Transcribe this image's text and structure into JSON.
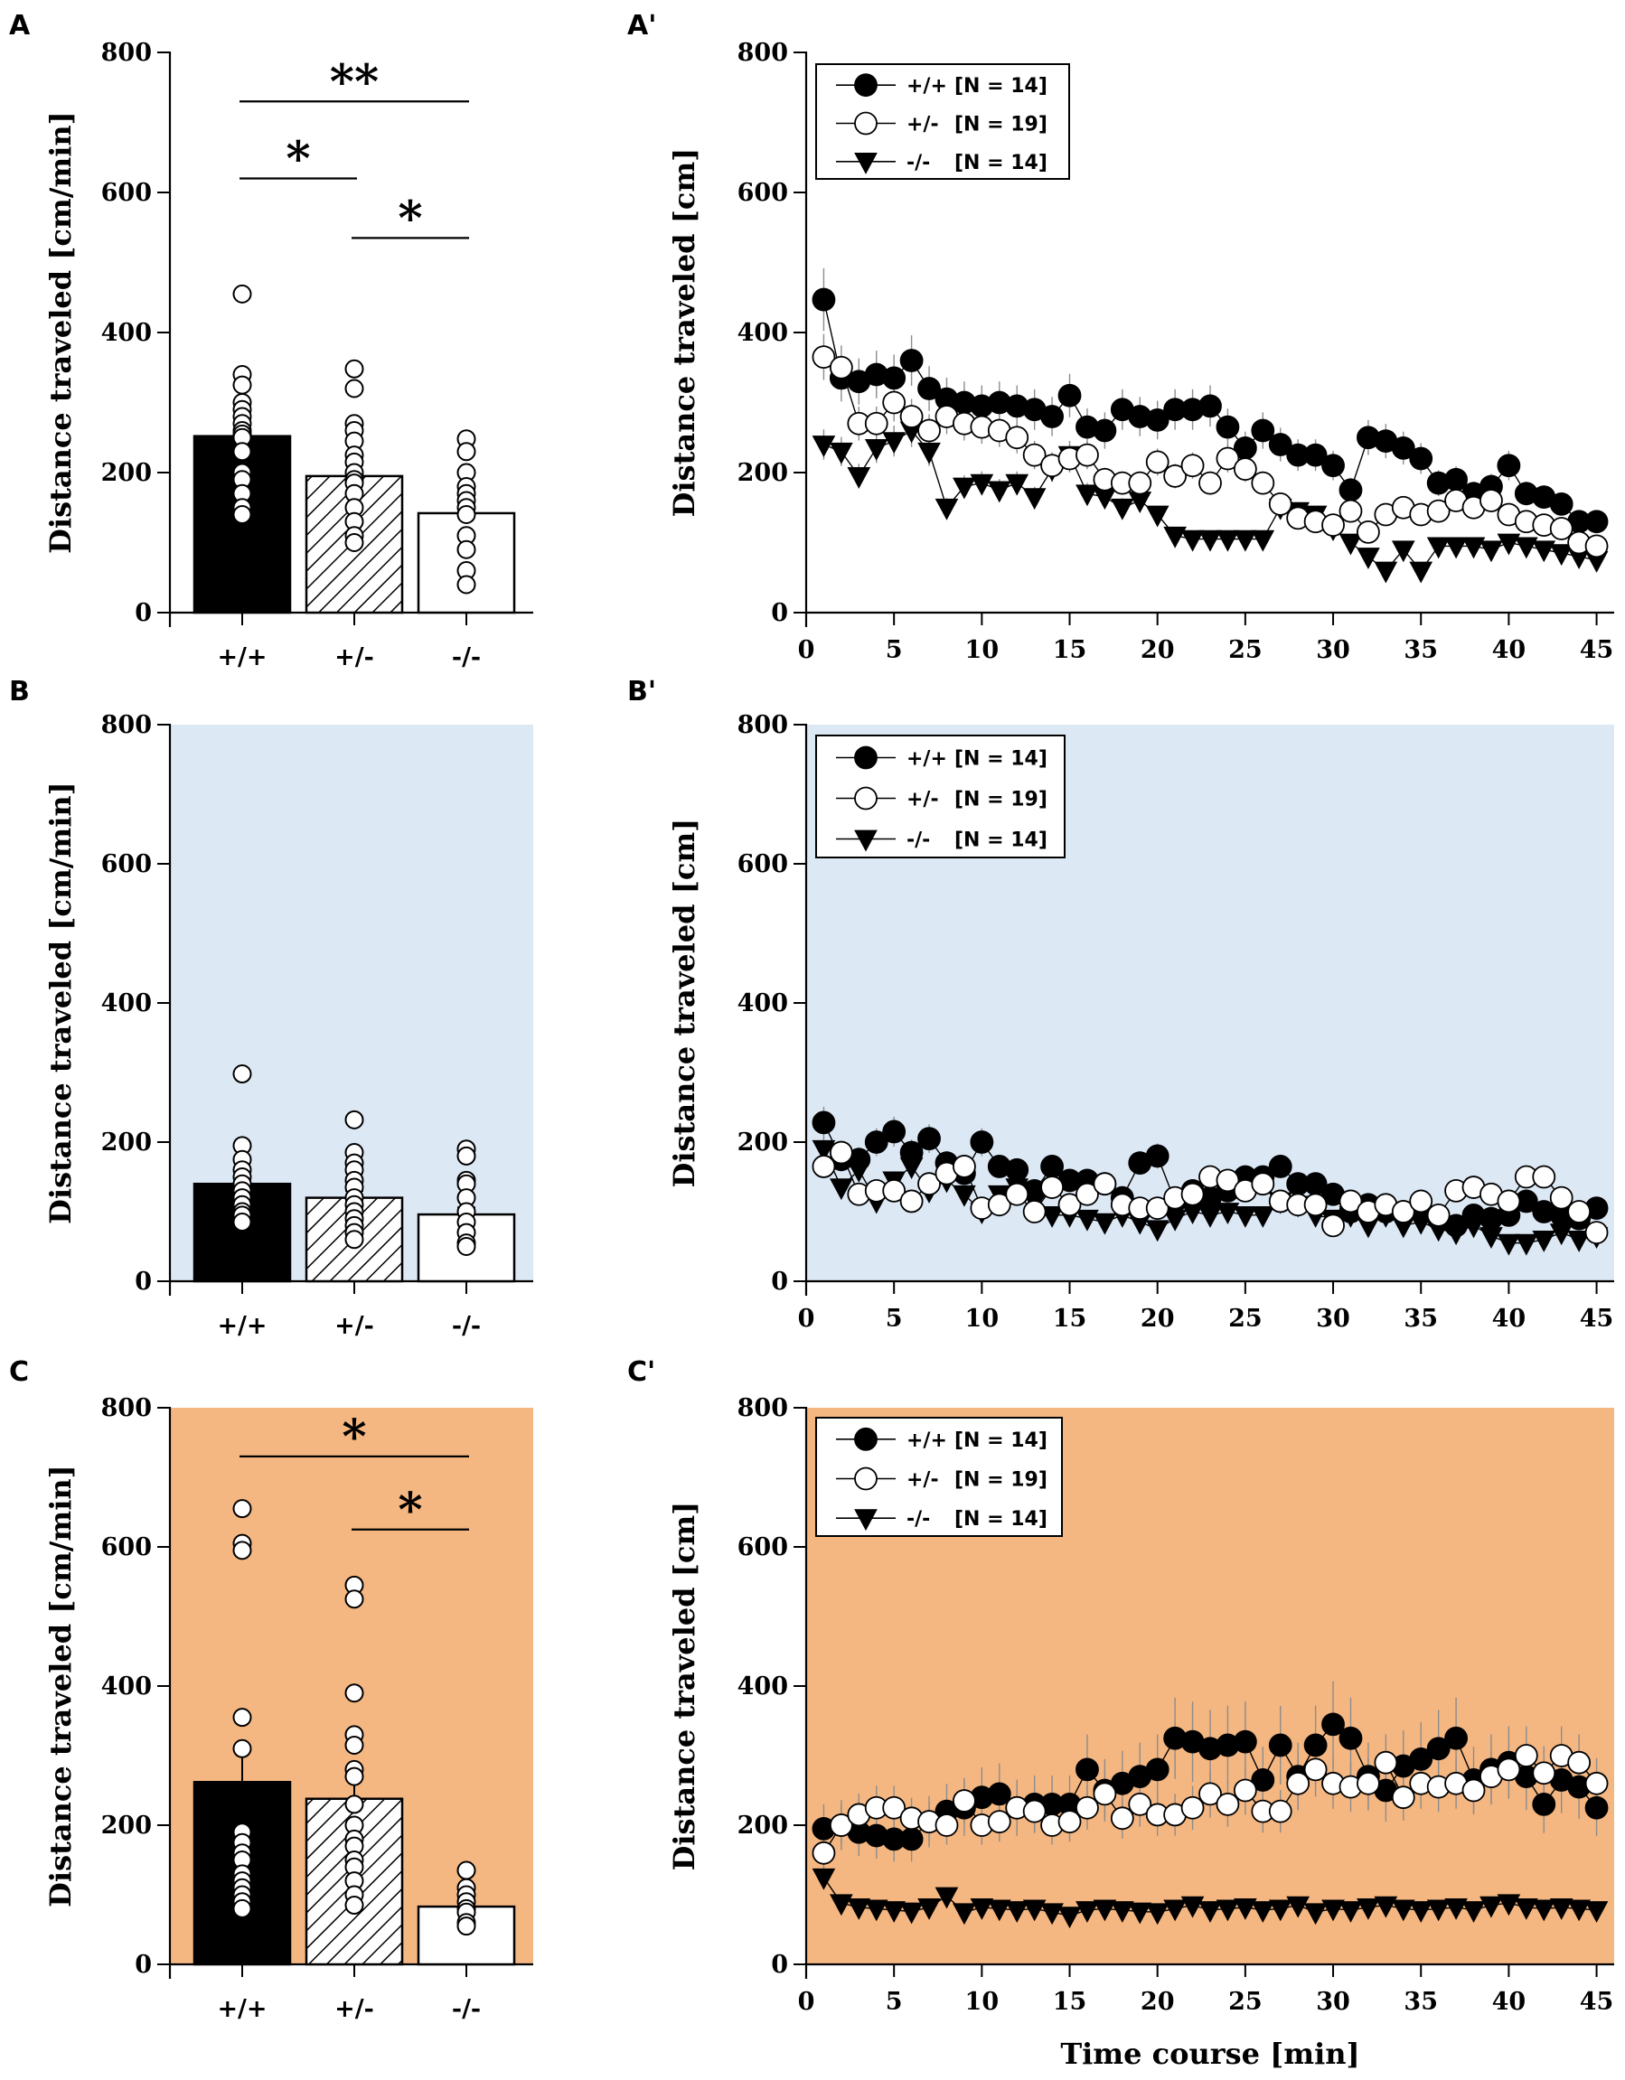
{
  "figure": {
    "y_axis_label_bar": "Distance traveled [cm/min]",
    "y_axis_label_time": "Distance traveled [cm]",
    "x_axis_label_time": "Time course [min]",
    "groups": [
      "+/+",
      "+/-",
      "-/-"
    ],
    "legend": [
      {
        "symbol": "+/+",
        "n": "[N = 14]"
      },
      {
        "symbol": "+/-",
        "n": "[N = 19]"
      },
      {
        "symbol": "-/-",
        "n": "[N = 14]"
      }
    ],
    "colors": {
      "panel_b_background": "#dde8f5",
      "panel_c_background": "#f5b782",
      "wt_fill": "#000000",
      "ko_fill": "#ffffff"
    }
  },
  "chart_data": [
    {
      "id": "A",
      "letter": "A",
      "type": "bar",
      "background": "none",
      "title": "",
      "xlabel": "",
      "ylabel": "Distance traveled [cm/min]",
      "ylim": [
        0,
        800
      ],
      "yticks": [
        0,
        200,
        400,
        600,
        800
      ],
      "categories": [
        "+/+",
        "+/-",
        "-/-"
      ],
      "values": [
        252,
        195,
        142
      ],
      "errors": [
        18,
        16,
        15
      ],
      "points": [
        [
          455,
          340,
          325,
          300,
          290,
          280,
          270,
          260,
          255,
          250,
          230,
          200,
          190,
          170,
          150,
          140
        ],
        [
          348,
          320,
          270,
          260,
          245,
          225,
          215,
          200,
          190,
          185,
          170,
          150,
          130,
          110,
          100
        ],
        [
          248,
          230,
          200,
          180,
          170,
          160,
          150,
          140,
          110,
          90,
          60,
          40
        ]
      ],
      "significance": [
        {
          "from": 0,
          "to": 2,
          "label": "**",
          "y": 730
        },
        {
          "from": 0,
          "to": 1,
          "label": "*",
          "y": 620
        },
        {
          "from": 1,
          "to": 2,
          "label": "*",
          "y": 535
        }
      ]
    },
    {
      "id": "A2",
      "letter": "A'",
      "type": "line",
      "background": "none",
      "title": "",
      "xlabel": "",
      "ylabel": "Distance traveled [cm]",
      "xlim": [
        0,
        46
      ],
      "ylim": [
        0,
        800
      ],
      "xticks": [
        0,
        5,
        10,
        15,
        20,
        25,
        30,
        35,
        40,
        45
      ],
      "yticks": [
        0,
        200,
        400,
        600,
        800
      ],
      "x": [
        1,
        2,
        3,
        4,
        5,
        6,
        7,
        8,
        9,
        10,
        11,
        12,
        13,
        14,
        15,
        16,
        17,
        18,
        19,
        20,
        21,
        22,
        23,
        24,
        25,
        26,
        27,
        28,
        29,
        30,
        31,
        32,
        33,
        34,
        35,
        36,
        37,
        38,
        39,
        40,
        41,
        42,
        43,
        44,
        45
      ],
      "series": [
        {
          "name": "+/+",
          "marker": "filled-circle",
          "values": [
            447,
            335,
            330,
            340,
            335,
            360,
            320,
            305,
            300,
            295,
            300,
            295,
            290,
            280,
            310,
            265,
            260,
            290,
            280,
            275,
            290,
            290,
            295,
            265,
            235,
            260,
            240,
            225,
            225,
            210,
            175,
            250,
            245,
            235,
            220,
            185,
            190,
            170,
            180,
            210,
            170,
            165,
            155,
            130,
            130
          ]
        },
        {
          "name": "+/-",
          "marker": "open-circle",
          "values": [
            365,
            350,
            270,
            270,
            300,
            280,
            260,
            280,
            270,
            265,
            260,
            250,
            225,
            210,
            220,
            225,
            190,
            185,
            185,
            215,
            195,
            210,
            185,
            220,
            205,
            185,
            155,
            135,
            130,
            125,
            145,
            115,
            140,
            150,
            140,
            145,
            160,
            150,
            160,
            140,
            130,
            125,
            120,
            100,
            95
          ]
        },
        {
          "name": "-/-",
          "marker": "filled-triangle",
          "values": [
            240,
            230,
            195,
            235,
            245,
            260,
            230,
            150,
            180,
            185,
            175,
            185,
            165,
            205,
            225,
            170,
            165,
            150,
            160,
            140,
            110,
            105,
            105,
            105,
            105,
            105,
            150,
            145,
            140,
            120,
            100,
            80,
            60,
            90,
            60,
            95,
            95,
            95,
            90,
            100,
            95,
            90,
            85,
            80,
            75
          ]
        }
      ]
    },
    {
      "id": "B",
      "letter": "B",
      "type": "bar",
      "background": "blue",
      "title": "",
      "xlabel": "",
      "ylabel": "Distance traveled [cm/min]",
      "ylim": [
        0,
        800
      ],
      "yticks": [
        0,
        200,
        400,
        600,
        800
      ],
      "categories": [
        "+/+",
        "+/-",
        "-/-"
      ],
      "values": [
        140,
        120,
        96
      ],
      "errors": [
        13,
        10,
        10
      ],
      "points": [
        [
          298,
          195,
          175,
          160,
          150,
          140,
          130,
          120,
          110,
          100,
          95,
          85
        ],
        [
          232,
          185,
          170,
          160,
          145,
          135,
          120,
          110,
          100,
          90,
          80,
          70,
          60
        ],
        [
          190,
          180,
          145,
          140,
          120,
          100,
          85,
          70,
          55,
          50
        ]
      ],
      "significance": []
    },
    {
      "id": "B2",
      "letter": "B'",
      "type": "line",
      "background": "blue",
      "title": "",
      "xlabel": "",
      "ylabel": "Distance traveled [cm]",
      "xlim": [
        0,
        46
      ],
      "ylim": [
        0,
        800
      ],
      "xticks": [
        0,
        5,
        10,
        15,
        20,
        25,
        30,
        35,
        40,
        45
      ],
      "yticks": [
        0,
        200,
        400,
        600,
        800
      ],
      "x": [
        1,
        2,
        3,
        4,
        5,
        6,
        7,
        8,
        9,
        10,
        11,
        12,
        13,
        14,
        15,
        16,
        17,
        18,
        19,
        20,
        21,
        22,
        23,
        24,
        25,
        26,
        27,
        28,
        29,
        30,
        31,
        32,
        33,
        34,
        35,
        36,
        37,
        38,
        39,
        40,
        41,
        42,
        43,
        44,
        45
      ],
      "series": [
        {
          "name": "+/+",
          "marker": "filled-circle",
          "values": [
            228,
            175,
            175,
            200,
            215,
            185,
            205,
            170,
            155,
            200,
            165,
            160,
            130,
            165,
            145,
            145,
            140,
            120,
            170,
            180,
            115,
            130,
            120,
            130,
            150,
            150,
            165,
            140,
            140,
            125,
            100,
            110,
            100,
            100,
            100,
            90,
            80,
            95,
            90,
            95,
            115,
            100,
            95,
            90,
            105
          ]
        },
        {
          "name": "+/-",
          "marker": "open-circle",
          "values": [
            165,
            185,
            125,
            130,
            130,
            115,
            140,
            155,
            165,
            105,
            110,
            125,
            100,
            135,
            110,
            125,
            140,
            110,
            105,
            105,
            120,
            125,
            150,
            145,
            130,
            140,
            115,
            110,
            110,
            80,
            115,
            100,
            110,
            100,
            115,
            95,
            130,
            135,
            125,
            115,
            150,
            150,
            120,
            100,
            70
          ]
        },
        {
          "name": "-/-",
          "marker": "filled-triangle",
          "values": [
            190,
            135,
            160,
            115,
            145,
            165,
            130,
            145,
            125,
            100,
            125,
            135,
            115,
            95,
            95,
            90,
            85,
            95,
            85,
            75,
            90,
            100,
            95,
            100,
            95,
            95,
            115,
            110,
            95,
            90,
            95,
            80,
            95,
            80,
            85,
            75,
            70,
            80,
            65,
            55,
            55,
            60,
            70,
            60,
            65
          ]
        }
      ]
    },
    {
      "id": "C",
      "letter": "C",
      "type": "bar",
      "background": "orange",
      "title": "",
      "xlabel": "",
      "ylabel": "Distance traveled [cm/min]",
      "ylim": [
        0,
        800
      ],
      "yticks": [
        0,
        200,
        400,
        600,
        800
      ],
      "categories": [
        "+/+",
        "+/-",
        "-/-"
      ],
      "values": [
        262,
        238,
        83
      ],
      "errors": [
        48,
        34,
        11
      ],
      "points": [
        [
          655,
          605,
          595,
          355,
          310,
          190,
          175,
          160,
          150,
          130,
          120,
          110,
          100,
          90,
          80
        ],
        [
          545,
          525,
          390,
          330,
          315,
          280,
          270,
          230,
          200,
          180,
          170,
          150,
          140,
          120,
          100,
          85
        ],
        [
          135,
          110,
          100,
          90,
          80,
          75,
          60,
          55
        ]
      ],
      "significance": [
        {
          "from": 0,
          "to": 2,
          "label": "*",
          "y": 730
        },
        {
          "from": 1,
          "to": 2,
          "label": "*",
          "y": 625
        }
      ]
    },
    {
      "id": "C2",
      "letter": "C'",
      "type": "line",
      "background": "orange",
      "title": "",
      "xlabel": "Time course [min]",
      "ylabel": "Distance traveled [cm]",
      "xlim": [
        0,
        46
      ],
      "ylim": [
        0,
        800
      ],
      "xticks": [
        0,
        5,
        10,
        15,
        20,
        25,
        30,
        35,
        40,
        45
      ],
      "yticks": [
        0,
        200,
        400,
        600,
        800
      ],
      "x": [
        1,
        2,
        3,
        4,
        5,
        6,
        7,
        8,
        9,
        10,
        11,
        12,
        13,
        14,
        15,
        16,
        17,
        18,
        19,
        20,
        21,
        22,
        23,
        24,
        25,
        26,
        27,
        28,
        29,
        30,
        31,
        32,
        33,
        34,
        35,
        36,
        37,
        38,
        39,
        40,
        41,
        42,
        43,
        44,
        45
      ],
      "series": [
        {
          "name": "+/+",
          "marker": "filled-circle",
          "values": [
            195,
            200,
            190,
            185,
            180,
            180,
            205,
            220,
            225,
            240,
            245,
            225,
            230,
            230,
            230,
            280,
            250,
            260,
            270,
            280,
            325,
            320,
            310,
            315,
            320,
            265,
            315,
            270,
            315,
            345,
            325,
            270,
            250,
            285,
            295,
            310,
            325,
            265,
            280,
            290,
            270,
            230,
            265,
            255,
            225
          ]
        },
        {
          "name": "+/-",
          "marker": "open-circle",
          "values": [
            160,
            200,
            215,
            225,
            225,
            210,
            205,
            200,
            235,
            200,
            205,
            225,
            220,
            200,
            205,
            225,
            245,
            210,
            230,
            215,
            215,
            225,
            245,
            230,
            250,
            220,
            220,
            260,
            280,
            260,
            255,
            260,
            290,
            240,
            260,
            255,
            260,
            250,
            270,
            280,
            300,
            275,
            300,
            290,
            260
          ]
        },
        {
          "name": "-/-",
          "marker": "filled-triangle",
          "values": [
            125,
            88,
            82,
            80,
            78,
            76,
            82,
            98,
            75,
            82,
            80,
            78,
            80,
            75,
            70,
            78,
            80,
            78,
            76,
            75,
            80,
            85,
            78,
            80,
            82,
            78,
            80,
            85,
            75,
            80,
            78,
            82,
            85,
            80,
            78,
            80,
            82,
            78,
            85,
            88,
            82,
            80,
            82,
            80,
            78
          ]
        }
      ]
    }
  ]
}
